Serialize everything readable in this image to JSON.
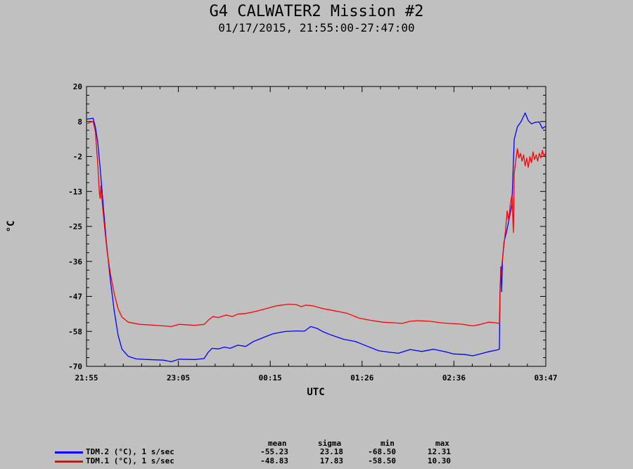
{
  "title": "G4 CALWATER2 Mission #2",
  "subtitle": "01/17/2015, 21:55:00-27:47:00",
  "chart_data": {
    "type": "line",
    "xlabel": "UTC",
    "ylabel": "°C",
    "x_ticks": [
      "21:55",
      "23:05",
      "00:15",
      "01:26",
      "02:36",
      "03:47"
    ],
    "y_ticks": [
      20,
      8,
      -2,
      -13,
      -25,
      -36,
      -47,
      -58,
      -70
    ],
    "ylim": [
      -70,
      20
    ],
    "xlim_hours": [
      21.9167,
      27.7833
    ],
    "grid": false,
    "series": [
      {
        "name": "TDM.2 (°C), 1 s/sec",
        "color": "#0000ff",
        "points": [
          [
            21.917,
            9.5
          ],
          [
            21.95,
            9.6
          ],
          [
            22.0,
            9.8
          ],
          [
            22.03,
            7.0
          ],
          [
            22.06,
            2.0
          ],
          [
            22.09,
            -6.0
          ],
          [
            22.13,
            -18.0
          ],
          [
            22.17,
            -30.0
          ],
          [
            22.22,
            -42.0
          ],
          [
            22.27,
            -52.0
          ],
          [
            22.32,
            -60.0
          ],
          [
            22.37,
            -64.5
          ],
          [
            22.45,
            -66.8
          ],
          [
            22.55,
            -67.6
          ],
          [
            22.7,
            -67.8
          ],
          [
            22.9,
            -68.0
          ],
          [
            23.0,
            -68.5
          ],
          [
            23.1,
            -67.7
          ],
          [
            23.3,
            -67.8
          ],
          [
            23.42,
            -67.5
          ],
          [
            23.47,
            -65.5
          ],
          [
            23.52,
            -64.2
          ],
          [
            23.6,
            -64.4
          ],
          [
            23.68,
            -63.8
          ],
          [
            23.75,
            -64.2
          ],
          [
            23.85,
            -63.2
          ],
          [
            23.95,
            -63.6
          ],
          [
            24.05,
            -62.0
          ],
          [
            24.2,
            -60.5
          ],
          [
            24.3,
            -59.5
          ],
          [
            24.45,
            -58.8
          ],
          [
            24.6,
            -58.6
          ],
          [
            24.7,
            -58.7
          ],
          [
            24.78,
            -57.2
          ],
          [
            24.86,
            -57.8
          ],
          [
            24.95,
            -59.0
          ],
          [
            25.05,
            -60.0
          ],
          [
            25.2,
            -61.3
          ],
          [
            25.35,
            -62.0
          ],
          [
            25.5,
            -63.5
          ],
          [
            25.65,
            -65.0
          ],
          [
            25.8,
            -65.5
          ],
          [
            25.9,
            -65.8
          ],
          [
            26.05,
            -64.6
          ],
          [
            26.2,
            -65.2
          ],
          [
            26.35,
            -64.5
          ],
          [
            26.5,
            -65.3
          ],
          [
            26.6,
            -66.0
          ],
          [
            26.75,
            -66.2
          ],
          [
            26.85,
            -66.6
          ],
          [
            26.95,
            -66.0
          ],
          [
            27.05,
            -65.3
          ],
          [
            27.15,
            -64.8
          ],
          [
            27.19,
            -64.5
          ],
          [
            27.2,
            -45.0
          ],
          [
            27.21,
            -38.0
          ],
          [
            27.22,
            -46.0
          ],
          [
            27.23,
            -36.0
          ],
          [
            27.25,
            -30.0
          ],
          [
            27.28,
            -27.0
          ],
          [
            27.32,
            -22.0
          ],
          [
            27.35,
            -18.0
          ],
          [
            27.38,
            3.0
          ],
          [
            27.42,
            7.0
          ],
          [
            27.47,
            8.8
          ],
          [
            27.52,
            11.5
          ],
          [
            27.56,
            9.0
          ],
          [
            27.6,
            8.0
          ],
          [
            27.65,
            8.5
          ],
          [
            27.7,
            8.6
          ],
          [
            27.74,
            6.5
          ],
          [
            27.78,
            7.2
          ]
        ]
      },
      {
        "name": "TDM.1 (°C), 1 s/sec",
        "color": "#ff0000",
        "points": [
          [
            21.917,
            8.0
          ],
          [
            21.95,
            8.3
          ],
          [
            22.0,
            8.8
          ],
          [
            22.03,
            5.5
          ],
          [
            22.06,
            -5.0
          ],
          [
            22.08,
            -14.0
          ],
          [
            22.09,
            -16.0
          ],
          [
            22.1,
            -12.0
          ],
          [
            22.12,
            -18.0
          ],
          [
            22.15,
            -26.0
          ],
          [
            22.18,
            -33.0
          ],
          [
            22.22,
            -40.0
          ],
          [
            22.27,
            -46.5
          ],
          [
            22.32,
            -51.5
          ],
          [
            22.37,
            -54.2
          ],
          [
            22.45,
            -55.8
          ],
          [
            22.6,
            -56.5
          ],
          [
            22.8,
            -56.8
          ],
          [
            23.0,
            -57.2
          ],
          [
            23.1,
            -56.5
          ],
          [
            23.3,
            -56.8
          ],
          [
            23.42,
            -56.5
          ],
          [
            23.48,
            -55.0
          ],
          [
            23.53,
            -54.0
          ],
          [
            23.6,
            -54.3
          ],
          [
            23.7,
            -53.5
          ],
          [
            23.78,
            -54.0
          ],
          [
            23.85,
            -53.2
          ],
          [
            23.95,
            -53.0
          ],
          [
            24.05,
            -52.5
          ],
          [
            24.2,
            -51.5
          ],
          [
            24.35,
            -50.5
          ],
          [
            24.5,
            -50.0
          ],
          [
            24.6,
            -50.2
          ],
          [
            24.66,
            -50.8
          ],
          [
            24.72,
            -50.3
          ],
          [
            24.8,
            -50.5
          ],
          [
            24.95,
            -51.5
          ],
          [
            25.1,
            -52.2
          ],
          [
            25.25,
            -53.0
          ],
          [
            25.4,
            -54.5
          ],
          [
            25.55,
            -55.2
          ],
          [
            25.7,
            -55.8
          ],
          [
            25.85,
            -56.0
          ],
          [
            25.95,
            -56.2
          ],
          [
            26.05,
            -55.5
          ],
          [
            26.15,
            -55.3
          ],
          [
            26.3,
            -55.5
          ],
          [
            26.45,
            -56.0
          ],
          [
            26.55,
            -56.2
          ],
          [
            26.7,
            -56.4
          ],
          [
            26.85,
            -57.0
          ],
          [
            26.95,
            -56.5
          ],
          [
            27.05,
            -55.8
          ],
          [
            27.15,
            -56.0
          ],
          [
            27.19,
            -56.2
          ],
          [
            27.2,
            -44.0
          ],
          [
            27.22,
            -38.0
          ],
          [
            27.24,
            -33.0
          ],
          [
            27.27,
            -26.0
          ],
          [
            27.29,
            -20.0
          ],
          [
            27.31,
            -23.0
          ],
          [
            27.33,
            -18.0
          ],
          [
            27.35,
            -15.0
          ],
          [
            27.37,
            -27.0
          ],
          [
            27.38,
            -8.0
          ],
          [
            27.4,
            -4.0
          ],
          [
            27.42,
            0.0
          ],
          [
            27.44,
            -3.0
          ],
          [
            27.46,
            -1.5
          ],
          [
            27.48,
            -4.0
          ],
          [
            27.5,
            -2.0
          ],
          [
            27.52,
            -5.5
          ],
          [
            27.54,
            -3.0
          ],
          [
            27.56,
            -6.0
          ],
          [
            27.58,
            -2.5
          ],
          [
            27.6,
            -4.5
          ],
          [
            27.62,
            -1.0
          ],
          [
            27.64,
            -3.5
          ],
          [
            27.66,
            -2.0
          ],
          [
            27.68,
            -4.0
          ],
          [
            27.7,
            -1.5
          ],
          [
            27.72,
            -3.0
          ],
          [
            27.74,
            -0.5
          ],
          [
            27.76,
            -2.5
          ],
          [
            27.78,
            -1.5
          ]
        ]
      }
    ]
  },
  "stats": {
    "headers": [
      "mean",
      "sigma",
      "min",
      "max"
    ],
    "rows": [
      {
        "label": "TDM.2 (°C), 1 s/sec",
        "color": "#0000ff",
        "mean": "-55.23",
        "sigma": "23.18",
        "min": "-68.50",
        "max": "12.31"
      },
      {
        "label": "TDM.1 (°C), 1 s/sec",
        "color": "#ff0000",
        "mean": "-48.83",
        "sigma": "17.83",
        "min": "-58.50",
        "max": "10.30"
      }
    ]
  }
}
